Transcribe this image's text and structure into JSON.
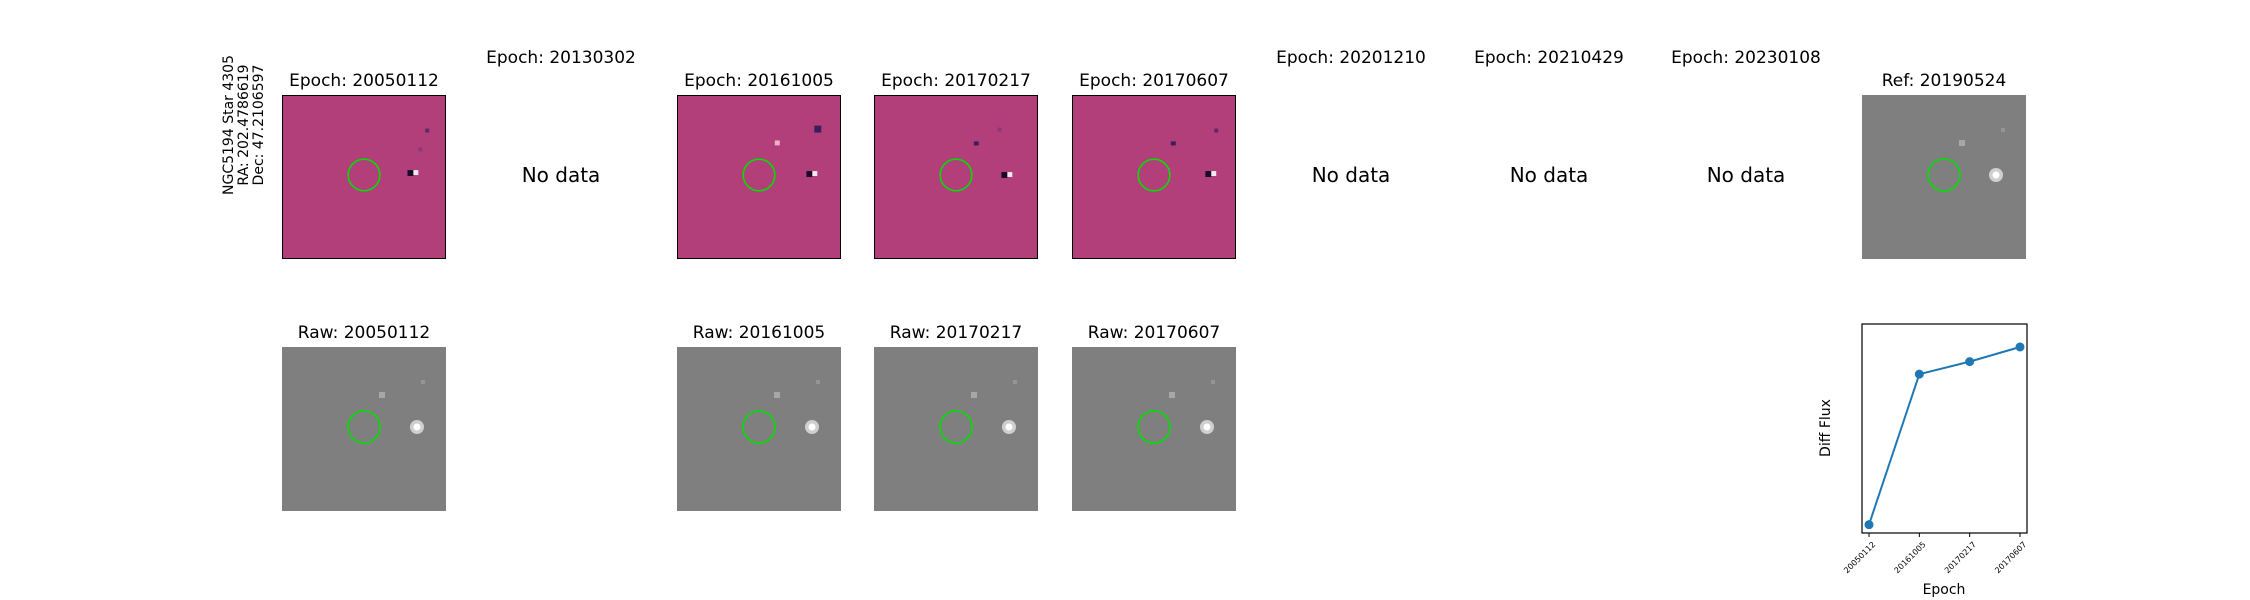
{
  "figure": {
    "row_label": {
      "line1": "NGC5194 Star 4305",
      "line2": "RA: 202.4786619",
      "line3": "Dec: 47.2106597"
    },
    "epoch_titles": [
      "Epoch: 20050112",
      "Epoch: 20130302",
      "Epoch: 20161005",
      "Epoch: 20170217",
      "Epoch: 20170607",
      "Epoch: 20201210",
      "Epoch: 20210429",
      "Epoch: 20230108"
    ],
    "ref_title": "Ref: 20190524",
    "no_data_label": "No data",
    "raw_titles": [
      "Raw: 20050112",
      "Raw: 20161005",
      "Raw: 20170217",
      "Raw: 20170607"
    ],
    "colors": {
      "diff_background": "#b23f79",
      "raw_background": "#7f7f7f",
      "circle": "#00e000",
      "line": "#1f77b4"
    }
  },
  "chart_data": {
    "type": "line",
    "categories": [
      "20050112",
      "20161005",
      "20170217",
      "20170607"
    ],
    "values": [
      0.0,
      0.72,
      0.78,
      0.85
    ],
    "xlabel": "Epoch",
    "ylabel": "Diff Flux",
    "ylim": [
      -0.04,
      0.96
    ],
    "yticks_shown": false,
    "grid": false
  }
}
